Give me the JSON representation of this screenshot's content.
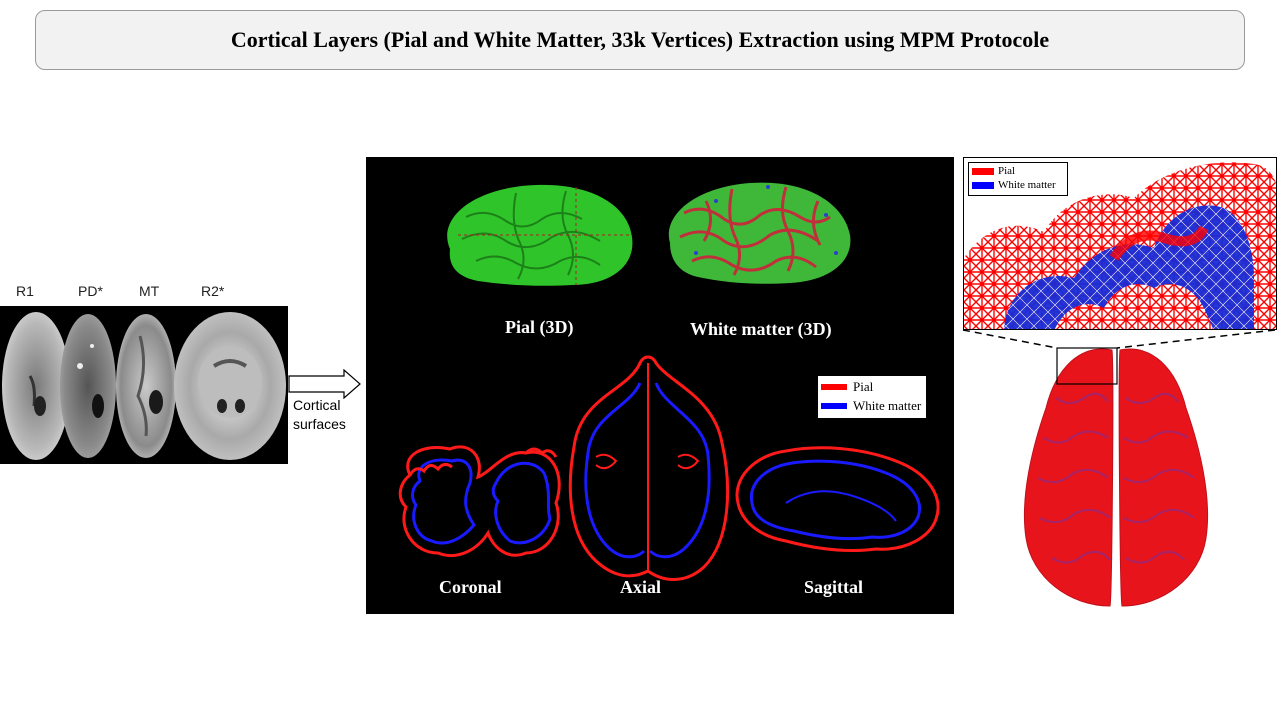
{
  "title": "Cortical Layers (Pial and White Matter, 33k Vertices) Extraction using MPM Protocole",
  "mri": {
    "labels": [
      "R1",
      "PD*",
      "MT",
      "R2*"
    ]
  },
  "arrow": {
    "line1": "Cortical",
    "line2": "surfaces"
  },
  "panel": {
    "pial3d": "Pial (3D)",
    "wm3d": "White matter (3D)",
    "coronal": "Coronal",
    "axial": "Axial",
    "sagittal": "Sagittal",
    "legend": {
      "pial": "Pial",
      "white_matter": "White matter"
    }
  },
  "zoom_legend": {
    "pial": "Pial",
    "white_matter": "White matter"
  },
  "colors": {
    "pial": "#ff0000",
    "white_matter": "#0000ff",
    "surface_green": "#2fc42a"
  }
}
